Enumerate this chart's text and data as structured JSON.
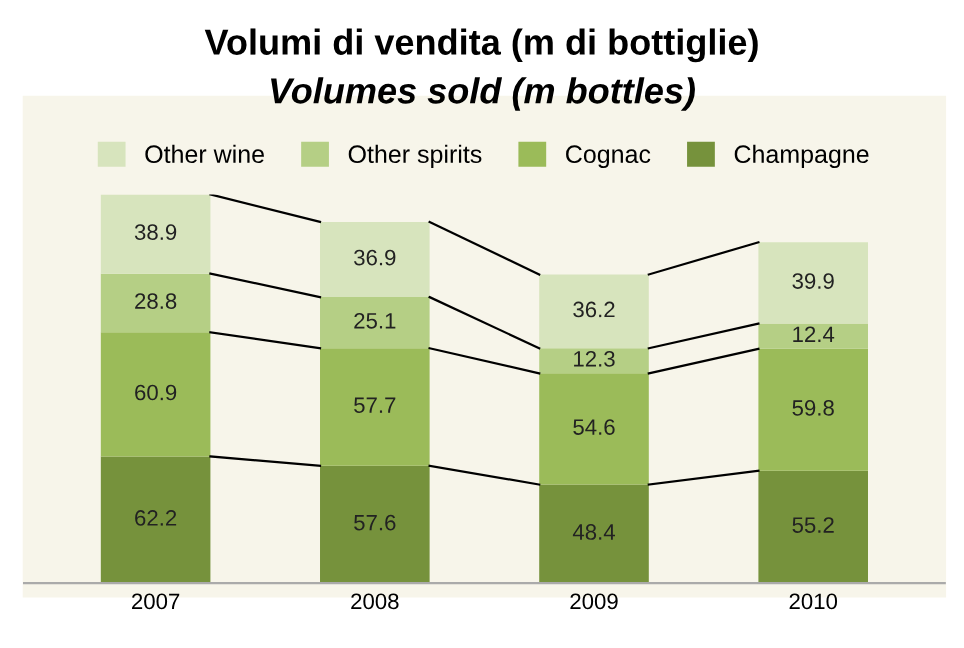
{
  "chart_data": {
    "type": "bar",
    "title": "Volumi di vendita (m di bottiglie)",
    "subtitle": "Volumes sold (m bottles)",
    "categories": [
      "2007",
      "2008",
      "2009",
      "2010"
    ],
    "stacked": true,
    "data_labels": true,
    "legend": "top",
    "grid": false,
    "series": [
      {
        "name": "Champagne",
        "color": "#76923c",
        "values": [
          62.2,
          57.6,
          48.4,
          55.2
        ]
      },
      {
        "name": "Cognac",
        "color": "#9bbb59",
        "values": [
          60.9,
          57.7,
          54.6,
          59.8
        ]
      },
      {
        "name": "Other spirits",
        "color": "#b5cf85",
        "values": [
          28.8,
          25.1,
          12.3,
          12.4
        ]
      },
      {
        "name": "Other wine",
        "color": "#d7e4bd",
        "values": [
          38.9,
          36.9,
          36.2,
          39.9
        ]
      }
    ]
  }
}
